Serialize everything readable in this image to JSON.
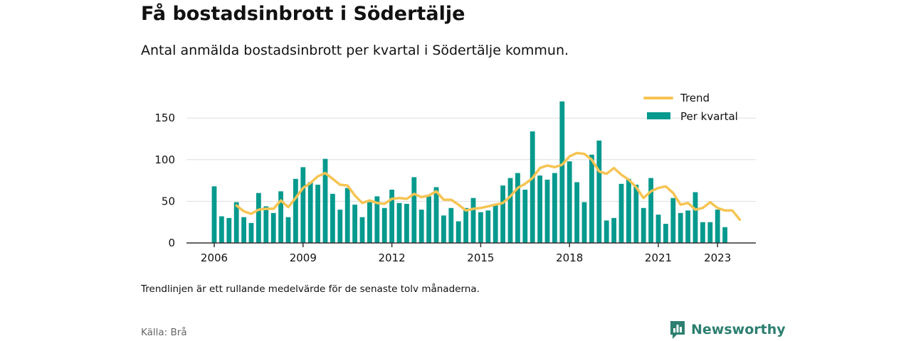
{
  "header": {
    "title": "Få bostadsinbrott i Södertälje",
    "subtitle": "Antal anmälda bostadsinbrott per kvartal i Södertälje kommun."
  },
  "footer": {
    "note": "Trendlinjen är ett rullande medelvärde för de senaste tolv månaderna.",
    "source": "Källa: Brå",
    "brand": "Newsworthy"
  },
  "colors": {
    "bars": "#069a8e",
    "trend": "#f6c453",
    "grid": "#dddddd",
    "axis": "#333333",
    "brand": "#2d7f70"
  },
  "chart_data": {
    "type": "bar",
    "start_year": 2006,
    "start_quarter": 1,
    "x_ticks": [
      "2006",
      "2009",
      "2012",
      "2015",
      "2018",
      "2021",
      "2023"
    ],
    "ylim": [
      0,
      175
    ],
    "y_ticks": [
      0,
      50,
      100,
      150
    ],
    "grid": true,
    "legend_position": "top-right",
    "series": [
      {
        "name": "Per kvartal",
        "type": "bar",
        "values": [
          68,
          32,
          30,
          49,
          31,
          24,
          60,
          44,
          36,
          62,
          31,
          77,
          91,
          73,
          70,
          101,
          59,
          40,
          66,
          46,
          31,
          49,
          56,
          42,
          64,
          48,
          47,
          79,
          40,
          56,
          67,
          33,
          42,
          26,
          42,
          54,
          37,
          39,
          47,
          69,
          78,
          84,
          64,
          134,
          81,
          76,
          84,
          170,
          98,
          73,
          49,
          106,
          123,
          27,
          30,
          71,
          77,
          70,
          42,
          78,
          34,
          23,
          54,
          36,
          39,
          61,
          25,
          25,
          40,
          19
        ]
      },
      {
        "name": "Trend",
        "type": "line",
        "start_index": 3,
        "values": [
          45,
          38,
          35,
          40,
          41,
          41,
          51,
          43,
          54,
          66,
          72,
          80,
          84,
          77,
          70,
          69,
          57,
          48,
          51,
          48,
          47,
          53,
          54,
          53,
          59,
          55,
          57,
          62,
          52,
          52,
          46,
          39,
          41,
          42,
          44,
          46,
          48,
          56,
          66,
          71,
          78,
          90,
          93,
          91,
          94,
          104,
          108,
          107,
          100,
          86,
          83,
          90,
          82,
          76,
          67,
          54,
          62,
          66,
          68,
          60,
          46,
          48,
          40,
          42,
          49,
          42,
          39,
          39,
          28
        ]
      }
    ]
  }
}
